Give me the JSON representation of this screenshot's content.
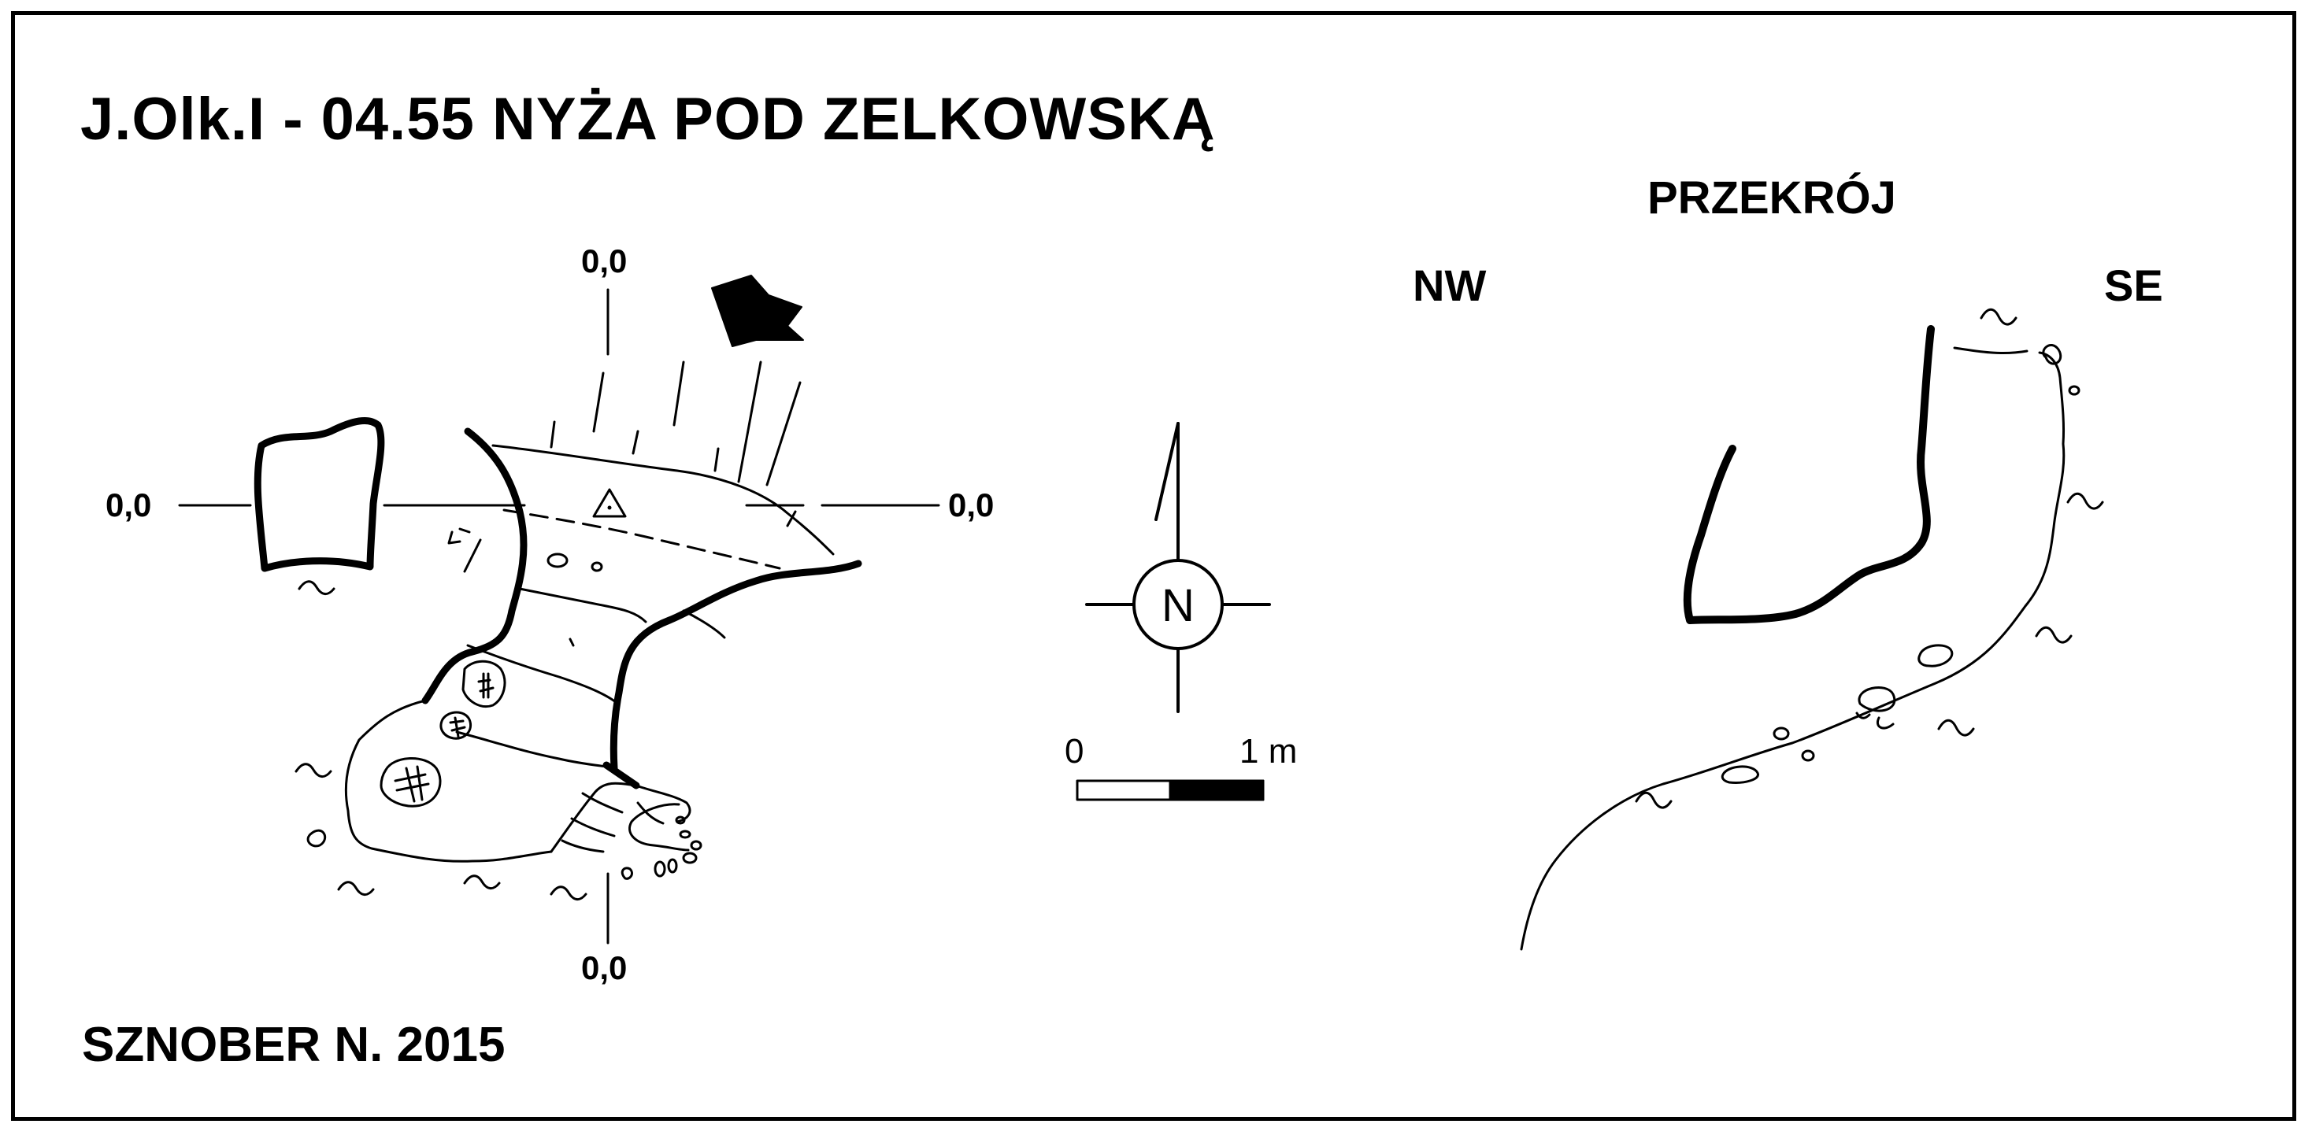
{
  "title": "J.Olk.I - 04.55 NYŻA POD ZELKOWSKĄ",
  "author": "SZNOBER N.  2015",
  "section": {
    "title": "PRZEKRÓJ",
    "left_direction": "NW",
    "right_direction": "SE"
  },
  "plan": {
    "coord_top": "0,0",
    "coord_left": "0,0",
    "coord_right": "0,0",
    "coord_bottom": "0,0"
  },
  "compass": {
    "letter": "N"
  },
  "scale_bar": {
    "start_label": "0",
    "end_label": "1 m"
  },
  "colors": {
    "ink": "#000000",
    "paper": "#ffffff"
  }
}
